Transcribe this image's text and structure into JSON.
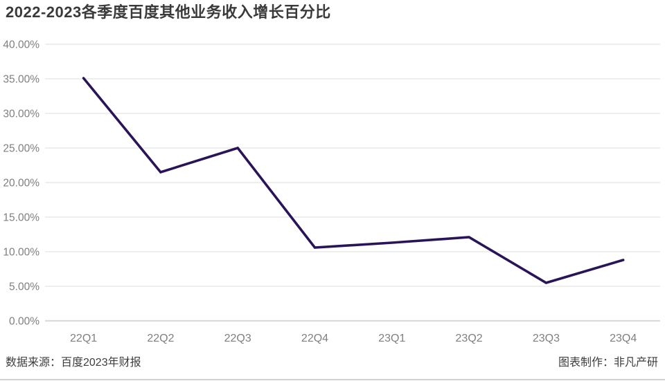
{
  "title": "2022-2023各季度百度其他业务收入增长百分比",
  "footer": {
    "source": "数据来源：百度2023年财报",
    "credit": "图表制作：非凡产研"
  },
  "colors": {
    "background": "#ffffff",
    "line": "#291459",
    "grid": "#e9e9e9",
    "baseline": "#dcdcdc",
    "tick_label": "#7f7f7f",
    "title_text": "#3a3a3a",
    "footer_text": "#3d3d3d",
    "divider": "#d2d2d2"
  },
  "chart_data": {
    "type": "line",
    "title": "2022-2023各季度百度其他业务收入增长百分比",
    "categories": [
      "22Q1",
      "22Q2",
      "22Q3",
      "22Q4",
      "23Q1",
      "23Q2",
      "23Q3",
      "23Q4"
    ],
    "values": [
      35.1,
      21.5,
      25.0,
      10.6,
      11.3,
      12.1,
      5.5,
      8.8
    ],
    "unit": "%",
    "xlabel": "",
    "ylabel": "",
    "ylim": [
      0,
      40
    ],
    "ytick_step": 5,
    "ytick_labels": [
      "0.00%",
      "5.00%",
      "10.00%",
      "15.00%",
      "20.00%",
      "25.00%",
      "30.00%",
      "35.00%",
      "40.00%"
    ],
    "grid": true,
    "legend": "none"
  }
}
